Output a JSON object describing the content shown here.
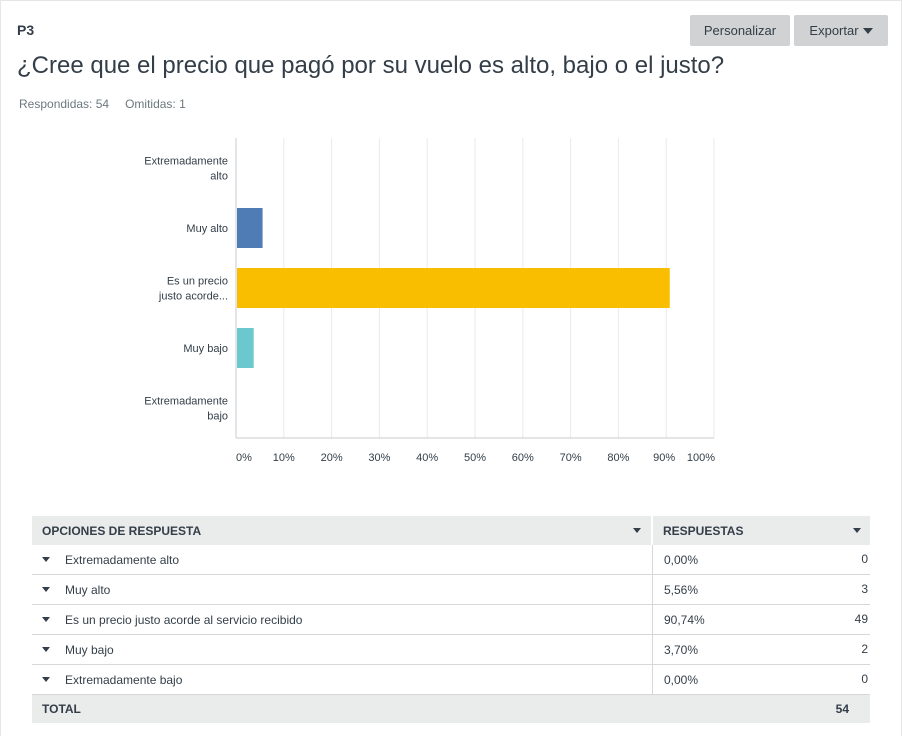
{
  "question": {
    "number": "P3",
    "title": "¿Cree que el precio que pagó por su vuelo es alto, bajo o el justo?",
    "answered": "Respondidas: 54",
    "skipped": "Omitidas: 1"
  },
  "toolbar": {
    "customize_label": "Personalizar",
    "export_label": "Exportar"
  },
  "chart_data": {
    "type": "bar",
    "orientation": "horizontal",
    "categories": [
      "Extremadamente alto",
      "Muy alto",
      "Es un precio justo acorde...",
      "Muy bajo",
      "Extremadamente bajo"
    ],
    "category_label_lines": [
      [
        "Extremadamente",
        "alto"
      ],
      [
        "Muy alto"
      ],
      [
        "Es un precio",
        "justo acorde..."
      ],
      [
        "Muy bajo"
      ],
      [
        "Extremadamente",
        "bajo"
      ]
    ],
    "values": [
      0.0,
      5.56,
      90.74,
      3.7,
      0.0
    ],
    "colors": [
      "#00bf6f",
      "#507cb6",
      "#f9be00",
      "#6bc8cd",
      "#ff8b4f"
    ],
    "xlim": [
      0,
      100
    ],
    "xticks": [
      "0%",
      "10%",
      "20%",
      "30%",
      "40%",
      "50%",
      "60%",
      "70%",
      "80%",
      "90%",
      "100%"
    ],
    "grid": true,
    "legend": "none"
  },
  "table": {
    "header_options": "OPCIONES DE RESPUESTA",
    "header_responses": "RESPUESTAS",
    "rows": [
      {
        "option": "Extremadamente alto",
        "percent": "0,00%",
        "count": "0"
      },
      {
        "option": "Muy alto",
        "percent": "5,56%",
        "count": "3"
      },
      {
        "option": "Es un precio justo acorde al servicio recibido",
        "percent": "90,74%",
        "count": "49"
      },
      {
        "option": "Muy bajo",
        "percent": "3,70%",
        "count": "2"
      },
      {
        "option": "Extremadamente bajo",
        "percent": "0,00%",
        "count": "0"
      }
    ],
    "total_label": "TOTAL",
    "total_count": "54"
  }
}
